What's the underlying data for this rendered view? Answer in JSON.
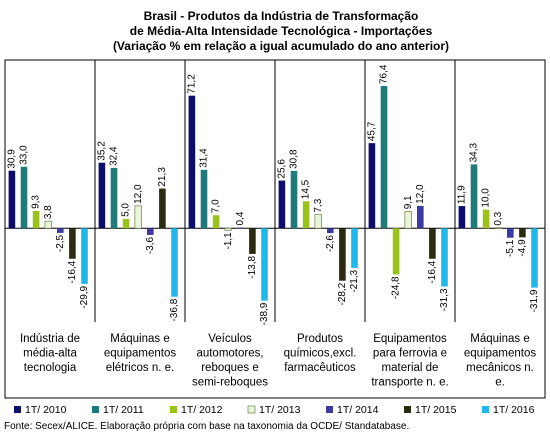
{
  "chart_data": {
    "type": "bar",
    "title_lines": [
      "Brasil - Produtos da Indústria de Transformação",
      "de Média-Alta Intensidade Tecnológica - Importações",
      "(Variação % em relação a igual acumulado do ano anterior)"
    ],
    "categories": [
      [
        "Indústria de",
        "média-alta",
        "tecnologia"
      ],
      [
        "Máquinas e",
        "equipamentos",
        "elétricos n. e."
      ],
      [
        "Veículos",
        "automotores,",
        "reboques e",
        "semi-reboques"
      ],
      [
        "Produtos",
        "químicos,excl.",
        "farmacêuticos"
      ],
      [
        "Equipamentos",
        "para ferrovia e",
        "material de",
        "transporte n. e."
      ],
      [
        "Máquinas e",
        "equipamentos",
        "mecânicos n.",
        "e."
      ]
    ],
    "series": [
      {
        "name": "1T/ 2010",
        "color": "#0d0d6b",
        "values": [
          30.9,
          35.2,
          71.2,
          25.6,
          45.7,
          11.9
        ]
      },
      {
        "name": "1T/ 2011",
        "color": "#1f7a7a",
        "values": [
          33.0,
          32.4,
          31.4,
          30.8,
          76.4,
          34.3
        ]
      },
      {
        "name": "1T/ 2012",
        "color": "#9ac21a",
        "values": [
          9.3,
          5.0,
          7.0,
          14.5,
          -24.8,
          10.0
        ]
      },
      {
        "name": "1T/ 2013",
        "color": "#e9f5d9",
        "values": [
          3.8,
          12.0,
          -1.1,
          7.3,
          9.1,
          0.3
        ]
      },
      {
        "name": "1T/ 2014",
        "color": "#3a3aa0",
        "values": [
          -2.5,
          -3.6,
          0.4,
          -2.6,
          12.0,
          -5.1
        ]
      },
      {
        "name": "1T/ 2015",
        "color": "#2b2b10",
        "values": [
          -16.4,
          21.3,
          -13.8,
          -28.2,
          -16.4,
          -4.9
        ]
      },
      {
        "name": "1T/ 2016",
        "color": "#1fb8e8",
        "values": [
          -29.9,
          -36.8,
          -38.9,
          -21.3,
          -31.3,
          -31.9
        ]
      }
    ],
    "value_labels": [
      [
        "30,9",
        "35,2",
        "71,2",
        "25,6",
        "45,7",
        "11,9"
      ],
      [
        "33,0",
        "32,4",
        "31,4",
        "30,8",
        "76,4",
        "34,3"
      ],
      [
        "9,3",
        "5,0",
        "7,0",
        "14,5",
        "-24,8",
        "10,0"
      ],
      [
        "3,8",
        "12,0",
        "-1,1",
        "7,3",
        "9,1",
        "0,3"
      ],
      [
        "-2,5",
        "-3,6",
        "0,4",
        "-2,6",
        "12,0",
        "-5,1"
      ],
      [
        "-16,4",
        "21,3",
        "-13,8",
        "-28,2",
        "-16,4",
        "-4,9"
      ],
      [
        "-29,9",
        "-36,8",
        "-38,9",
        "-21,3",
        "-31,3",
        "-31,9"
      ]
    ],
    "ylim": [
      -45,
      85
    ],
    "grid": false,
    "legend_position": "bottom",
    "source": "Fonte: Secex/ALICE. Elaboração própria com base na taxonomia da OCDE/ Standatabase."
  }
}
